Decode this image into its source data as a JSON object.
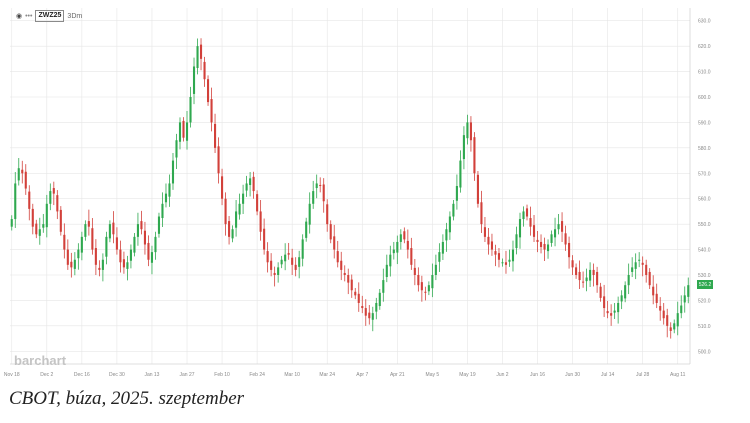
{
  "header": {
    "eye_icon": "eye-icon",
    "more_icon": "dots-icon",
    "symbol": "ZWZ25",
    "period": "3Dm"
  },
  "watermark": "barchart",
  "last_price_label": "526.2",
  "caption": "CBOT, búza, 2025. szeptember",
  "colors": {
    "up": "#2fa84f",
    "down": "#d2403a",
    "grid": "#e6e6e6",
    "axis_text": "#888888"
  },
  "chart_data": {
    "type": "candlestick",
    "title": "",
    "xlabel": "",
    "ylabel": "",
    "ylim": [
      495,
      635
    ],
    "y_ticks": [
      500,
      510,
      520,
      530,
      540,
      550,
      560,
      570,
      580,
      590,
      600,
      610,
      620,
      630
    ],
    "y_tick_labels": [
      "500.0",
      "510.0",
      "520.0",
      "530.0",
      "540.0",
      "550.0",
      "560.0",
      "570.0",
      "580.0",
      "590.0",
      "600.0",
      "610.0",
      "620.0",
      "630.0"
    ],
    "x_tick_labels": [
      "Nov 18",
      "Dec 2",
      "Dec 16",
      "Dec 30",
      "Jan 13",
      "Jan 27",
      "Feb 10",
      "Feb 24",
      "Mar 10",
      "Mar 24",
      "Apr 7",
      "Apr 21",
      "May 5",
      "May 19",
      "Jun 2",
      "Jun 16",
      "Jun 30",
      "Jul 14",
      "Jul 28",
      "Aug 11"
    ],
    "x_tick_index": [
      0,
      10,
      20,
      30,
      40,
      50,
      60,
      70,
      80,
      90,
      100,
      110,
      120,
      130,
      140,
      150,
      160,
      170,
      180,
      190
    ],
    "grid": true,
    "last_price": 526.2,
    "closes": [
      552,
      566,
      572,
      570,
      564,
      556,
      549,
      546,
      548,
      550,
      558,
      563,
      562,
      555,
      547,
      540,
      534,
      533,
      536,
      540,
      545,
      550,
      549,
      540,
      534,
      532,
      536,
      545,
      550,
      546,
      540,
      535,
      533,
      535,
      540,
      545,
      550,
      548,
      542,
      536,
      539,
      545,
      553,
      558,
      562,
      566,
      575,
      583,
      590,
      584,
      590,
      600,
      612,
      620,
      615,
      607,
      598,
      590,
      580,
      570,
      560,
      550,
      545,
      548,
      555,
      558,
      562,
      566,
      568,
      563,
      555,
      547,
      540,
      535,
      532,
      530,
      533,
      536,
      538,
      538,
      534,
      532,
      537,
      544,
      551,
      558,
      563,
      566,
      565,
      559,
      550,
      544,
      540,
      535,
      532,
      530,
      527,
      524,
      522,
      519,
      517,
      514,
      513,
      515,
      519,
      523,
      528,
      534,
      538,
      540,
      543,
      546,
      544,
      540,
      534,
      530,
      526,
      524,
      523,
      526,
      530,
      534,
      539,
      543,
      548,
      553,
      558,
      565,
      575,
      585,
      590,
      583,
      570,
      558,
      550,
      545,
      542,
      540,
      538,
      536,
      535,
      534,
      536,
      540,
      546,
      552,
      555,
      553,
      549,
      545,
      543,
      541,
      540,
      542,
      546,
      548,
      550,
      547,
      542,
      537,
      533,
      530,
      528,
      527,
      529,
      532,
      530,
      526,
      521,
      517,
      515,
      514,
      516,
      519,
      522,
      526,
      530,
      533,
      535,
      536,
      534,
      530,
      526,
      522,
      519,
      516,
      513,
      510,
      508,
      511,
      515,
      518,
      522,
      526
    ]
  }
}
